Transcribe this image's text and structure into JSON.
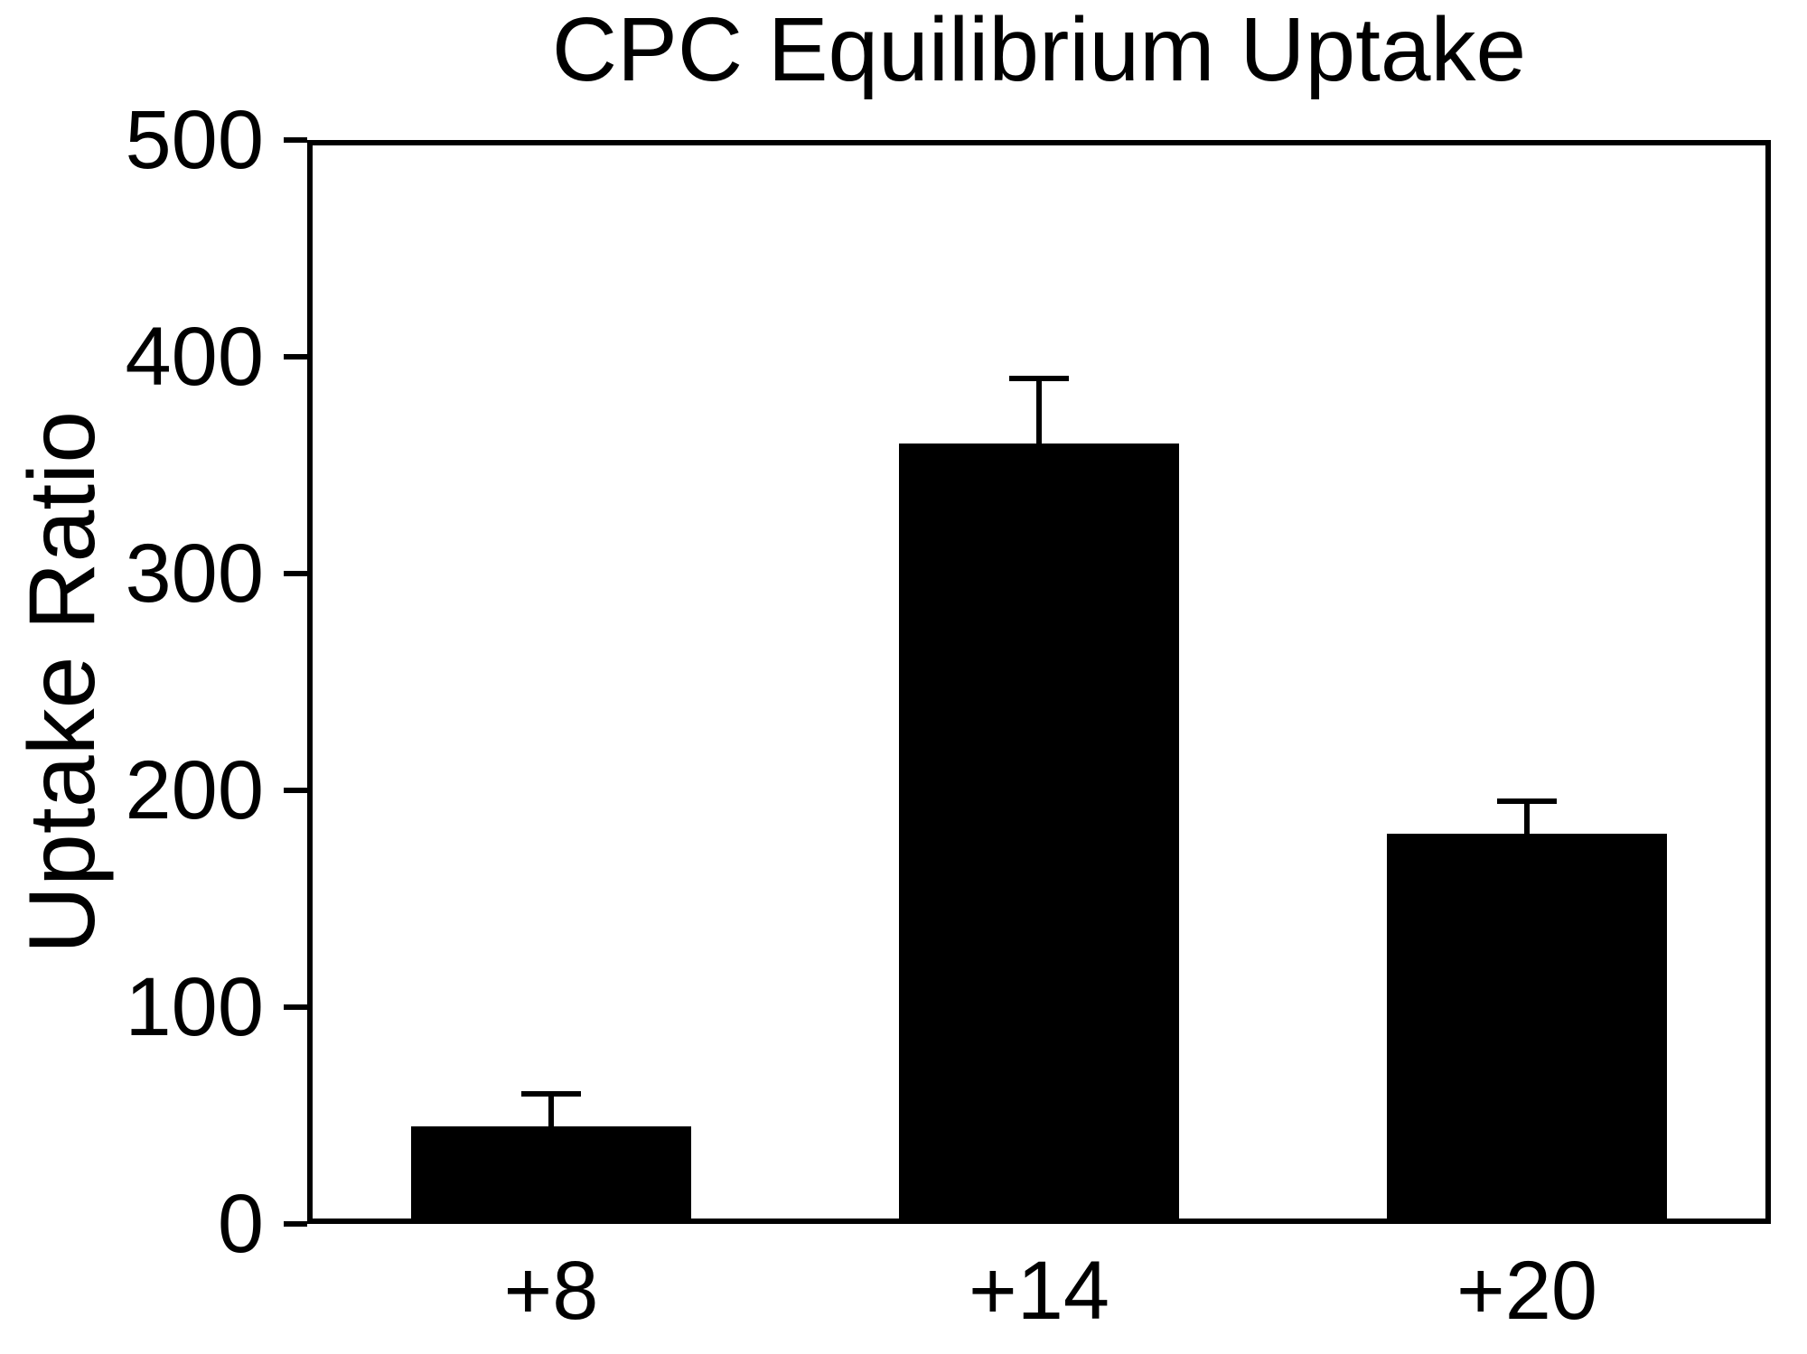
{
  "chart_data": {
    "type": "bar",
    "title": "CPC Equilibrium Uptake",
    "ylabel": "Uptake Ratio",
    "xlabel": "",
    "categories": [
      "+8",
      "+14",
      "+20"
    ],
    "values": [
      45,
      360,
      180
    ],
    "errors": [
      15,
      30,
      15
    ],
    "ylim": [
      0,
      500
    ],
    "yticks": [
      0,
      100,
      200,
      300,
      400,
      500
    ],
    "bar_color": "#000000",
    "axis_color": "#000000",
    "background": "#ffffff",
    "grid": false,
    "legend": "none"
  }
}
